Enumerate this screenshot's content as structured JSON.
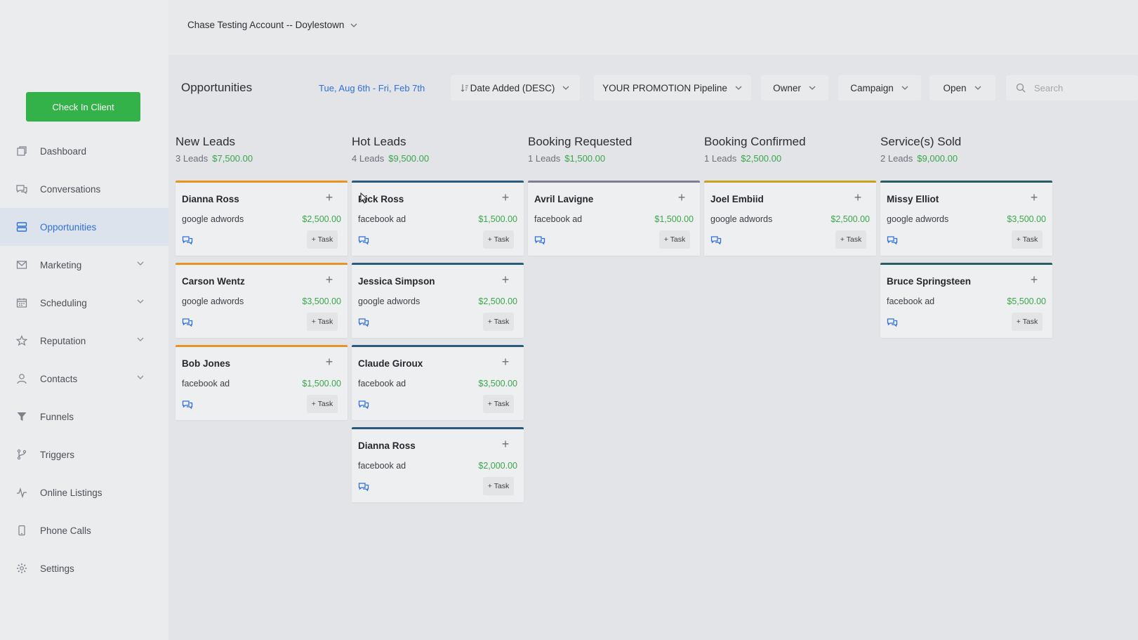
{
  "topbar": {
    "account": "Chase Testing Account -- Doylestown"
  },
  "sidebar": {
    "checkin_label": "Check In Client",
    "items": [
      {
        "label": "Dashboard",
        "icon": "dashboard-icon",
        "has_chevron": false
      },
      {
        "label": "Conversations",
        "icon": "chat-icon",
        "has_chevron": false
      },
      {
        "label": "Opportunities",
        "icon": "opportunities-icon",
        "has_chevron": false,
        "active": true
      },
      {
        "label": "Marketing",
        "icon": "mail-icon",
        "has_chevron": true
      },
      {
        "label": "Scheduling",
        "icon": "calendar-icon",
        "has_chevron": true
      },
      {
        "label": "Reputation",
        "icon": "star-icon",
        "has_chevron": true
      },
      {
        "label": "Contacts",
        "icon": "person-icon",
        "has_chevron": true
      },
      {
        "label": "Funnels",
        "icon": "funnel-icon",
        "has_chevron": false
      },
      {
        "label": "Triggers",
        "icon": "branch-icon",
        "has_chevron": false
      },
      {
        "label": "Online Listings",
        "icon": "pulse-icon",
        "has_chevron": false
      },
      {
        "label": "Phone Calls",
        "icon": "phone-icon",
        "has_chevron": false
      },
      {
        "label": "Settings",
        "icon": "gear-icon",
        "has_chevron": false
      }
    ]
  },
  "toolbar": {
    "title": "Opportunities",
    "date_range": "Tue, Aug 6th - Fri, Feb 7th",
    "sort": "Date Added (DESC)",
    "pipeline": "YOUR PROMOTION Pipeline",
    "owner": "Owner",
    "campaign": "Campaign",
    "status": "Open",
    "search_placeholder": "Search"
  },
  "columns": [
    {
      "title": "New Leads",
      "count": "3 Leads",
      "amount": "$7,500.00",
      "cards": [
        {
          "name": "Dianna Ross",
          "source": "google adwords",
          "value": "$2,500.00",
          "task": "+ Task",
          "accent": "orange"
        },
        {
          "name": "Carson Wentz",
          "source": "google adwords",
          "value": "$3,500.00",
          "task": "+ Task",
          "accent": "orange"
        },
        {
          "name": "Bob Jones",
          "source": "facebook ad",
          "value": "$1,500.00",
          "task": "+ Task",
          "accent": "orange"
        }
      ]
    },
    {
      "title": "Hot Leads",
      "count": "4 Leads",
      "amount": "$9,500.00",
      "cards": [
        {
          "name": "Rick Ross",
          "source": "facebook ad",
          "value": "$1,500.00",
          "task": "+ Task",
          "accent": "blue"
        },
        {
          "name": "Jessica Simpson",
          "source": "google adwords",
          "value": "$2,500.00",
          "task": "+ Task",
          "accent": "blue"
        },
        {
          "name": "Claude Giroux",
          "source": "facebook ad",
          "value": "$3,500.00",
          "task": "+ Task",
          "accent": "blue"
        },
        {
          "name": "Dianna Ross",
          "source": "facebook ad",
          "value": "$2,000.00",
          "task": "+ Task",
          "accent": "blue"
        }
      ]
    },
    {
      "title": "Booking Requested",
      "count": "1 Leads",
      "amount": "$1,500.00",
      "cards": [
        {
          "name": "Avril Lavigne",
          "source": "facebook ad",
          "value": "$1,500.00",
          "task": "+ Task",
          "accent": "purple"
        }
      ]
    },
    {
      "title": "Booking Confirmed",
      "count": "1 Leads",
      "amount": "$2,500.00",
      "cards": [
        {
          "name": "Joel Embiid",
          "source": "google adwords",
          "value": "$2,500.00",
          "task": "+ Task",
          "accent": "olive"
        }
      ]
    },
    {
      "title": "Service(s) Sold",
      "count": "2 Leads",
      "amount": "$9,000.00",
      "cards": [
        {
          "name": "Missy Elliot",
          "source": "google adwords",
          "value": "$3,500.00",
          "task": "+ Task",
          "accent": "teal"
        },
        {
          "name": "Bruce Springsteen",
          "source": "facebook ad",
          "value": "$5,500.00",
          "task": "+ Task",
          "accent": "teal"
        }
      ]
    }
  ]
}
